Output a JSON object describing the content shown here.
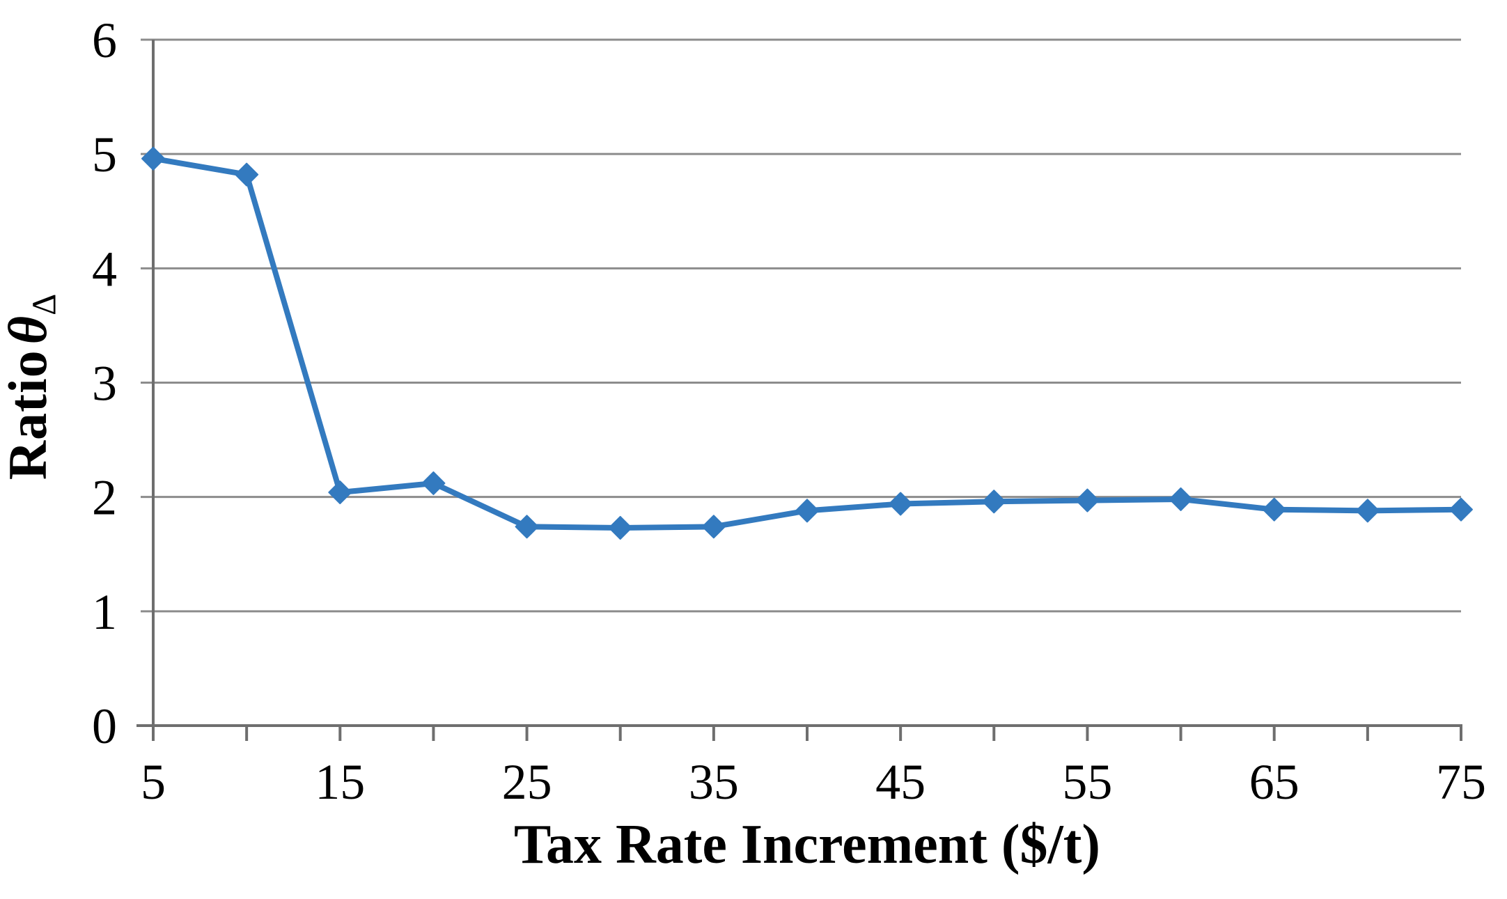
{
  "chart_data": {
    "type": "line",
    "title": "",
    "xlabel": "Tax Rate Increment ($/t)",
    "ylabel": "Ratio θΔ",
    "ylabel_parts": {
      "text": "Ratio",
      "symbol": "θ",
      "subscript": "Δ"
    },
    "x": [
      5,
      10,
      15,
      20,
      25,
      30,
      35,
      40,
      45,
      50,
      55,
      60,
      65,
      70,
      75
    ],
    "values": [
      4.96,
      4.82,
      2.04,
      2.12,
      1.74,
      1.73,
      1.74,
      1.88,
      1.94,
      1.96,
      1.97,
      1.98,
      1.89,
      1.88,
      1.89
    ],
    "series": [
      {
        "name": "Ratio",
        "values": [
          4.96,
          4.82,
          2.04,
          2.12,
          1.74,
          1.73,
          1.74,
          1.88,
          1.94,
          1.96,
          1.97,
          1.98,
          1.89,
          1.88,
          1.89
        ]
      }
    ],
    "x_tick_positions": [
      5,
      10,
      15,
      20,
      25,
      30,
      35,
      40,
      45,
      50,
      55,
      60,
      65,
      70,
      75
    ],
    "x_tick_labels": [
      "5",
      "",
      "15",
      "",
      "25",
      "",
      "35",
      "",
      "45",
      "",
      "55",
      "",
      "65",
      "",
      "75"
    ],
    "y_ticks": [
      0,
      1,
      2,
      3,
      4,
      5,
      6
    ],
    "y_tick_labels": [
      "0",
      "1",
      "2",
      "3",
      "4",
      "5",
      "6"
    ],
    "xlim": [
      5,
      75
    ],
    "ylim": [
      0,
      6
    ],
    "grid": "horizontal",
    "legend": false,
    "marker": "diamond",
    "line_color": "#337ABF",
    "gridline_color": "#8C8C8C",
    "axis_color": "#6E6E6E",
    "text_color": "#000000"
  }
}
